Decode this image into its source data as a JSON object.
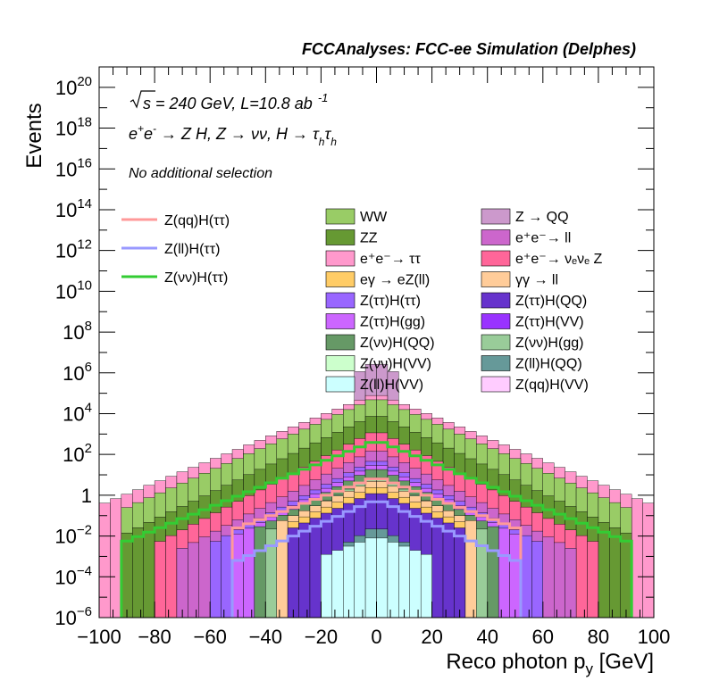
{
  "chart_data": {
    "type": "histogram-stacked-log",
    "title": "FCCAnalyses: FCC-ee Simulation (Delphes)",
    "xlabel": "Reco photon p",
    "xlabel_sub": "y",
    "xlabel_unit": "[GeV]",
    "ylabel": "Events",
    "xlim": [
      -100,
      100
    ],
    "ylim_log10": [
      -6,
      21
    ],
    "log_y": true,
    "grid": false,
    "x_ticks": [
      -100,
      -80,
      -60,
      -40,
      -20,
      0,
      20,
      40,
      60,
      80,
      100
    ],
    "x_tick_labels": [
      "−100",
      "−80",
      "−60",
      "−40",
      "−20",
      "0",
      "20",
      "40",
      "60",
      "80",
      "100"
    ],
    "y_ticks_log10": [
      -6,
      -4,
      -2,
      0,
      2,
      4,
      6,
      8,
      10,
      12,
      14,
      16,
      18,
      20
    ],
    "y_tick_labels": [
      {
        "base": "10",
        "exp": "−6"
      },
      {
        "base": "10",
        "exp": "−4"
      },
      {
        "base": "10",
        "exp": "−2"
      },
      {
        "base": "1",
        "exp": ""
      },
      {
        "base": "10",
        "exp": "2"
      },
      {
        "base": "10",
        "exp": "4"
      },
      {
        "base": "10",
        "exp": "6"
      },
      {
        "base": "10",
        "exp": "8"
      },
      {
        "base": "10",
        "exp": "10"
      },
      {
        "base": "10",
        "exp": "12"
      },
      {
        "base": "10",
        "exp": "14"
      },
      {
        "base": "10",
        "exp": "16"
      },
      {
        "base": "10",
        "exp": "18"
      },
      {
        "base": "10",
        "exp": "20"
      }
    ],
    "annotations": {
      "energy_sqrt": "s",
      "energy_rest": " = 240 GeV, L=10.8 ab",
      "energy_exp": "-1",
      "process": {
        "p1": "e",
        "p1_sup": "+",
        "p2": "e",
        "p2_sup": "-",
        "arrow1": " → Z H, Z  → νν, H  → ",
        "tau1": "τ",
        "tau1_sub": "h",
        "tau2": "τ",
        "tau2_sub": "h"
      },
      "selection": "No additional selection"
    },
    "signal_legend": [
      {
        "name": "Z(qq)H(ττ)",
        "color": "#ff9999"
      },
      {
        "name": "Z(ll)H(ττ)",
        "color": "#9999ff"
      },
      {
        "name": "Z(νν)H(ττ)",
        "color": "#33cc33"
      }
    ],
    "background_legend": [
      {
        "name": "WW",
        "color": "#99cc66"
      },
      {
        "name": "Z → QQ",
        "color": "#cc99cc"
      },
      {
        "name": "ZZ",
        "color": "#669933"
      },
      {
        "name": "e⁺e⁻→ ll",
        "color": "#cc66cc"
      },
      {
        "name": "e⁺e⁻→ ττ",
        "color": "#ff99cc"
      },
      {
        "name": "e⁺e⁻→ νₑνₑ Z",
        "color": "#ff6699"
      },
      {
        "name": "eγ  → eZ(ll)",
        "color": "#ffcc66"
      },
      {
        "name": "γγ  → ll",
        "color": "#ffcc99"
      },
      {
        "name": "Z(ττ)H(ττ)",
        "color": "#9966ff"
      },
      {
        "name": "Z(ττ)H(QQ)",
        "color": "#6633cc"
      },
      {
        "name": "Z(ττ)H(gg)",
        "color": "#cc66ff"
      },
      {
        "name": "Z(ττ)H(VV)",
        "color": "#9933ff"
      },
      {
        "name": "Z(νν)H(QQ)",
        "color": "#669966"
      },
      {
        "name": "Z(νν)H(gg)",
        "color": "#99cc99"
      },
      {
        "name": "Z(νν)H(VV)",
        "color": "#ccffcc"
      },
      {
        "name": "Z(ll)H(QQ)",
        "color": "#669999"
      },
      {
        "name": "Z(ll)H(VV)",
        "color": "#ccffff"
      },
      {
        "name": "Z(qq)H(VV)",
        "color": "#ffccff"
      }
    ],
    "stack_profiles": [
      {
        "name": "Z → QQ",
        "color": "#cc99cc",
        "peak": 6.6,
        "slope": 0.09,
        "floor": -6,
        "width": 8
      },
      {
        "name": "e⁺e⁻→ ττ",
        "color": "#ff99cc",
        "peak": 5.0,
        "slope": 0.055,
        "floor": -6,
        "width": 100
      },
      {
        "name": "WW",
        "color": "#99cc66",
        "peak": 4.8,
        "slope": 0.06,
        "floor": -6,
        "width": 90
      },
      {
        "name": "ZZ",
        "color": "#669933",
        "peak": 4.0,
        "slope": 0.065,
        "floor": -6,
        "width": 90
      },
      {
        "name": "e⁺e⁻→ νₑνₑ Z",
        "color": "#ff6699",
        "peak": 3.2,
        "slope": 0.07,
        "floor": -6,
        "width": 80
      },
      {
        "name": "e⁺e⁻→ ll",
        "color": "#cc66cc",
        "peak": 2.3,
        "slope": 0.07,
        "floor": -6,
        "width": 70
      },
      {
        "name": "Z(ττ)H(ττ)",
        "color": "#9966ff",
        "peak": 1.8,
        "slope": 0.07,
        "floor": -6,
        "width": 60
      },
      {
        "name": "Z(ττ)H(gg)",
        "color": "#cc66ff",
        "peak": 1.6,
        "slope": 0.07,
        "floor": -6,
        "width": 50
      },
      {
        "name": "Z(νν)H(QQ)",
        "color": "#669966",
        "peak": 1.4,
        "slope": 0.07,
        "floor": -6,
        "width": 45
      },
      {
        "name": "Z(νν)H(gg)",
        "color": "#99cc99",
        "peak": 1.0,
        "slope": 0.07,
        "floor": -6,
        "width": 40
      },
      {
        "name": "γγ  → ll",
        "color": "#ffcc99",
        "peak": 0.8,
        "slope": 0.06,
        "floor": -6,
        "width": 36
      },
      {
        "name": "eγ  → eZ(ll)",
        "color": "#ffcc66",
        "peak": 0.5,
        "slope": 0.06,
        "floor": -6,
        "width": 32
      },
      {
        "name": "Z(ττ)H(QQ)",
        "color": "#6633cc",
        "peak": 0.2,
        "slope": 0.06,
        "floor": -6,
        "width": 30
      },
      {
        "name": "Z(ll)H(QQ)",
        "color": "#669999",
        "peak": -1.5,
        "slope": 0.08,
        "floor": -6,
        "width": 12
      },
      {
        "name": "Z(ll)H(VV)",
        "color": "#ccffff",
        "peak": -2.0,
        "slope": 0.05,
        "floor": -6,
        "width": 20
      }
    ],
    "signal_lines": [
      {
        "name": "Z(νν)H(ττ)",
        "color": "#33cc33",
        "peak": 2.7,
        "slope": 0.055,
        "width": 92
      },
      {
        "name": "Z(qq)H(ττ)",
        "color": "#ff9999",
        "peak": 0.9,
        "slope": 0.05,
        "width": 50
      },
      {
        "name": "Z(ll)H(ττ)",
        "color": "#9999ff",
        "peak": -0.2,
        "slope": 0.06,
        "width": 50
      }
    ]
  }
}
